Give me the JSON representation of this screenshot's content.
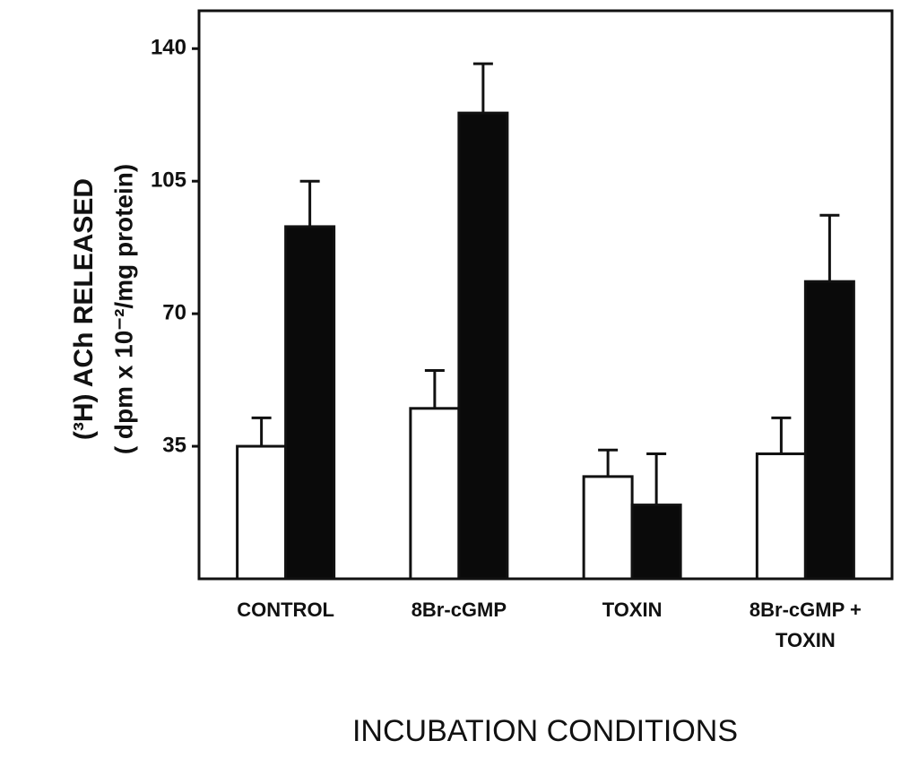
{
  "chart_data": {
    "type": "bar",
    "categories": [
      "CONTROL",
      "8Br-cGMP",
      "TOXIN",
      "8Br-cGMP + TOXIN"
    ],
    "series": [
      {
        "color": "#ffffff",
        "values": [
          35,
          45,
          27,
          33
        ],
        "errors": [
          7.5,
          10,
          7,
          9.5
        ]
      },
      {
        "color": "#0a0a0a",
        "values": [
          93,
          123,
          19.5,
          78.5
        ],
        "errors": [
          12,
          13,
          13.5,
          17.5
        ]
      }
    ],
    "y_label": [
      "(³H) ACh RELEASED",
      "( dpm x 10⁻²/mg protein)"
    ],
    "x_label": "INCUBATION CONDITIONS",
    "ylim": [
      0,
      150
    ],
    "yticks": [
      35,
      70,
      105,
      140
    ],
    "grid": false
  }
}
